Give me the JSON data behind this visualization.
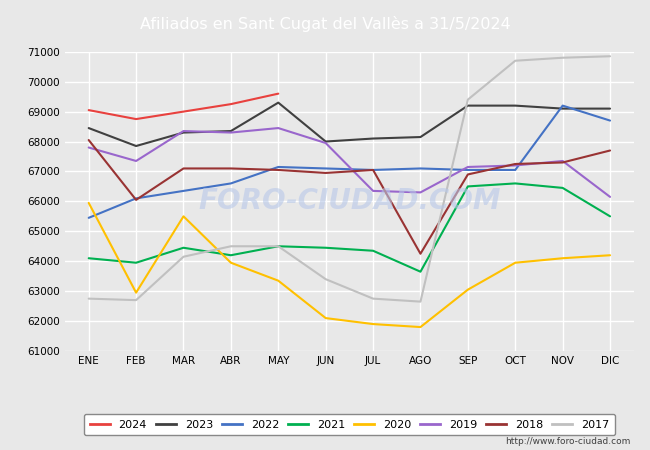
{
  "title": "Afiliados en Sant Cugat del Vallès a 31/5/2024",
  "title_bg_color": "#4f81bd",
  "title_text_color": "white",
  "ylim": [
    61000,
    71000
  ],
  "yticks": [
    61000,
    62000,
    63000,
    64000,
    65000,
    66000,
    67000,
    68000,
    69000,
    70000,
    71000
  ],
  "months": [
    "ENE",
    "FEB",
    "MAR",
    "ABR",
    "MAY",
    "JUN",
    "JUL",
    "AGO",
    "SEP",
    "OCT",
    "NOV",
    "DIC"
  ],
  "watermark": "FORO-CIUDAD.COM",
  "url": "http://www.foro-ciudad.com",
  "series": {
    "2024": {
      "color": "#e8413e",
      "data": [
        69050,
        68750,
        69000,
        69250,
        69600,
        null,
        null,
        null,
        null,
        null,
        null,
        null
      ]
    },
    "2023": {
      "color": "#404040",
      "data": [
        68450,
        67850,
        68300,
        68350,
        69300,
        68000,
        68100,
        68150,
        69200,
        69200,
        69100,
        69100
      ]
    },
    "2022": {
      "color": "#4472c4",
      "data": [
        65450,
        66100,
        66350,
        66600,
        67150,
        67100,
        67050,
        67100,
        67050,
        67050,
        69200,
        68700
      ]
    },
    "2021": {
      "color": "#00b050",
      "data": [
        64100,
        63950,
        64450,
        64200,
        64500,
        64450,
        64350,
        63650,
        66500,
        66600,
        66450,
        65500
      ]
    },
    "2020": {
      "color": "#ffc000",
      "data": [
        65950,
        62950,
        65500,
        63950,
        63350,
        62100,
        61900,
        61800,
        63050,
        63950,
        64100,
        64200
      ]
    },
    "2019": {
      "color": "#9966cc",
      "data": [
        67800,
        67350,
        68350,
        68300,
        68450,
        67950,
        66350,
        66300,
        67150,
        67200,
        67350,
        66150
      ]
    },
    "2018": {
      "color": "#993333",
      "data": [
        68050,
        66050,
        67100,
        67100,
        67050,
        66950,
        67050,
        64250,
        66900,
        67250,
        67300,
        67700
      ]
    },
    "2017": {
      "color": "#c0c0c0",
      "data": [
        62750,
        62700,
        64150,
        64500,
        64500,
        63400,
        62750,
        62650,
        69400,
        70700,
        70800,
        70850
      ]
    }
  },
  "bg_color": "#e8e8e8",
  "plot_bg_color": "#e8e8e8",
  "grid_color": "white",
  "legend_order": [
    "2024",
    "2023",
    "2022",
    "2021",
    "2020",
    "2019",
    "2018",
    "2017"
  ],
  "figsize": [
    6.5,
    4.5
  ],
  "dpi": 100
}
